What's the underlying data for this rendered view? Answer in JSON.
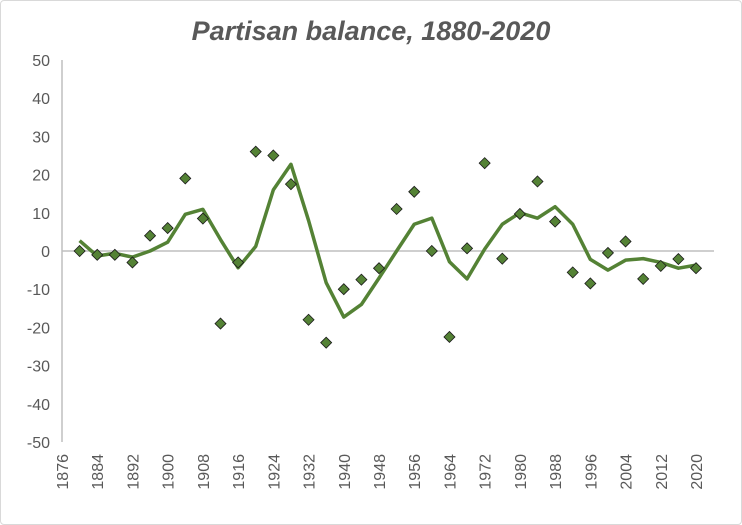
{
  "chart_data": {
    "type": "scatter",
    "title": "Partisan balance, 1880-2020",
    "xlabel": "",
    "ylabel": "",
    "xlim": [
      1876,
      2020
    ],
    "ylim": [
      -50,
      50
    ],
    "x_ticks": [
      1876,
      1884,
      1892,
      1900,
      1908,
      1916,
      1924,
      1932,
      1940,
      1948,
      1956,
      1964,
      1972,
      1980,
      1988,
      1996,
      2004,
      2012,
      2020
    ],
    "y_ticks": [
      50,
      40,
      30,
      20,
      10,
      0,
      -10,
      -20,
      -30,
      -40,
      -50
    ],
    "grid": false,
    "zero_line": true,
    "legend": "none",
    "x": [
      1880,
      1884,
      1888,
      1892,
      1896,
      1900,
      1904,
      1908,
      1912,
      1916,
      1920,
      1924,
      1928,
      1932,
      1936,
      1940,
      1944,
      1948,
      1952,
      1956,
      1960,
      1964,
      1968,
      1972,
      1976,
      1980,
      1984,
      1988,
      1992,
      1996,
      2000,
      2004,
      2008,
      2012,
      2016,
      2020
    ],
    "series": [
      {
        "type": "scatter",
        "marker": "diamond",
        "color": "#548235",
        "values": [
          0,
          -1,
          -1,
          -3,
          4,
          6,
          19,
          8.5,
          -19,
          -3,
          26,
          25,
          17.5,
          -18,
          -24,
          -10,
          -7.5,
          -4.5,
          11,
          15.5,
          0,
          -22.5,
          0.7,
          23,
          -2,
          9.7,
          18.2,
          7.7,
          -5.6,
          -8.5,
          -0.5,
          2.5,
          -7.3,
          -3.9,
          -2.1,
          -4.5
        ]
      },
      {
        "type": "line",
        "color": "#548235",
        "values": [
          2.7,
          -1.3,
          -0.6,
          -1.6,
          0,
          2.3,
          9.6,
          10.9,
          3,
          -4.4,
          1.2,
          16,
          22.7,
          8,
          -8.3,
          -17.3,
          -14,
          -7.1,
          0,
          7,
          8.6,
          -2.8,
          -7.3,
          0.5,
          7,
          10,
          8.6,
          11.6,
          7,
          -2.2,
          -5,
          -2.4,
          -2,
          -3,
          -4.5,
          -3.7
        ]
      }
    ]
  }
}
